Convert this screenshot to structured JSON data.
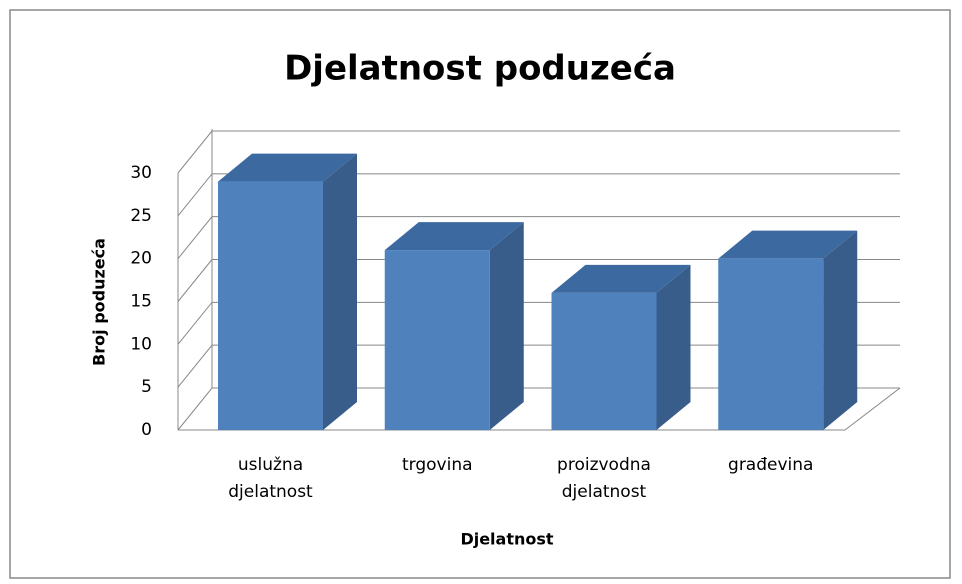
{
  "chart_data": {
    "type": "bar3d",
    "title": "Djelatnost poduzeća",
    "x_label": "Djelatnost",
    "y_label": "Broj poduzeća",
    "categories": [
      "uslužna djelatnost",
      "trgovina",
      "proizvodna djelatnost",
      "građevina"
    ],
    "values": [
      29,
      21,
      16,
      20
    ],
    "color": "#4f81bd",
    "ylim": [
      0,
      30
    ],
    "yticks": [
      0,
      5,
      10,
      15,
      20,
      25,
      30
    ],
    "grid": true
  }
}
